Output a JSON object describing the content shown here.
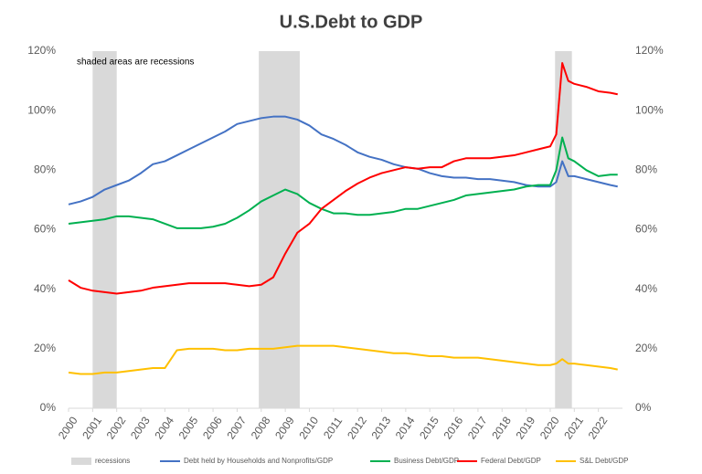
{
  "chart_data": {
    "type": "line",
    "title": "U.S.Debt to GDP",
    "annotation": "shaded areas are recessions",
    "x": [
      2000,
      2000.5,
      2001,
      2001.5,
      2002,
      2002.5,
      2003,
      2003.5,
      2004,
      2004.5,
      2005,
      2005.5,
      2006,
      2006.5,
      2007,
      2007.5,
      2008,
      2008.5,
      2009,
      2009.5,
      2010,
      2010.5,
      2011,
      2011.5,
      2012,
      2012.5,
      2013,
      2013.5,
      2014,
      2014.5,
      2015,
      2015.5,
      2016,
      2016.5,
      2017,
      2017.5,
      2018,
      2018.5,
      2019,
      2019.5,
      2020,
      2020.25,
      2020.5,
      2020.75,
      2021,
      2021.5,
      2022,
      2022.5,
      2022.8
    ],
    "recessions": {
      "name": "recessions",
      "color": "#d9d9d9",
      "spans": [
        [
          2001,
          2002
        ],
        [
          2007.9,
          2009.6
        ],
        [
          2020.2,
          2020.9
        ]
      ]
    },
    "series": [
      {
        "name": "Debt held by Households and Nonprofits/GDP",
        "color": "#4472c4",
        "values": [
          68.5,
          69.5,
          71,
          73.5,
          75,
          76.5,
          79,
          82,
          83,
          85,
          87,
          89,
          91,
          93,
          95.5,
          96.5,
          97.5,
          98,
          98,
          97,
          95,
          92,
          90.5,
          88.5,
          86,
          84.5,
          83.5,
          82,
          81,
          80.5,
          79,
          78,
          77.5,
          77.5,
          77,
          77,
          76.5,
          76,
          75,
          74.5,
          74.5,
          76,
          83,
          78,
          78,
          77,
          76,
          75,
          74.5
        ]
      },
      {
        "name": "Business Debt/GDP",
        "color": "#00b050",
        "values": [
          62,
          62.5,
          63,
          63.5,
          64.5,
          64.5,
          64,
          63.5,
          62,
          60.5,
          60.5,
          60.5,
          61,
          62,
          64,
          66.5,
          69.5,
          71.5,
          73.5,
          72,
          69,
          67,
          65.5,
          65.5,
          65,
          65,
          65.5,
          66,
          67,
          67,
          68,
          69,
          70,
          71.5,
          72,
          72.5,
          73,
          73.5,
          74.5,
          75,
          75,
          80,
          91,
          84,
          83,
          80,
          78,
          78.5,
          78.5
        ]
      },
      {
        "name": "Federal Debt/GDP",
        "color": "#ff0000",
        "values": [
          43,
          40.5,
          39.5,
          39,
          38.5,
          39,
          39.5,
          40.5,
          41,
          41.5,
          42,
          42,
          42,
          42,
          41.5,
          41,
          41.5,
          44,
          52,
          59,
          62,
          67,
          70,
          73,
          75.5,
          77.5,
          79,
          80,
          81,
          80.5,
          81,
          81,
          83,
          84,
          84,
          84,
          84.5,
          85,
          86,
          87,
          88,
          92,
          116,
          110,
          109,
          108,
          106.5,
          106,
          105.5
        ]
      },
      {
        "name": "S&L Debt/GDP",
        "color": "#ffc000",
        "values": [
          12,
          11.5,
          11.5,
          12,
          12,
          12.5,
          13,
          13.5,
          13.5,
          19.5,
          20,
          20,
          20,
          19.5,
          19.5,
          20,
          20,
          20,
          20.5,
          21,
          21,
          21,
          21,
          20.5,
          20,
          19.5,
          19,
          18.5,
          18.5,
          18,
          17.5,
          17.5,
          17,
          17,
          17,
          16.5,
          16,
          15.5,
          15,
          14.5,
          14.5,
          15,
          16.5,
          15,
          15,
          14.5,
          14,
          13.5,
          13
        ]
      }
    ],
    "xlim": [
      2000,
      2023
    ],
    "xticks": [
      2000,
      2001,
      2002,
      2003,
      2004,
      2005,
      2006,
      2007,
      2008,
      2009,
      2010,
      2011,
      2012,
      2013,
      2014,
      2015,
      2016,
      2017,
      2018,
      2019,
      2020,
      2021,
      2022
    ],
    "ylim": [
      0,
      120
    ],
    "yticks": [
      {
        "value": 0,
        "label": "0%"
      },
      {
        "value": 20,
        "label": "20%"
      },
      {
        "value": 40,
        "label": "40%"
      },
      {
        "value": 60,
        "label": "60%"
      },
      {
        "value": 80,
        "label": "80%"
      },
      {
        "value": 100,
        "label": "100%"
      },
      {
        "value": 120,
        "label": "120%"
      }
    ],
    "y2lim": [
      0,
      120
    ],
    "y2ticks": [
      {
        "value": 0,
        "label": "0%"
      },
      {
        "value": 20,
        "label": "20%"
      },
      {
        "value": 40,
        "label": "40%"
      },
      {
        "value": 60,
        "label": "60%"
      },
      {
        "value": 80,
        "label": "80%"
      },
      {
        "value": 100,
        "label": "100%"
      },
      {
        "value": 120,
        "label": "120%"
      }
    ],
    "grid": false,
    "legend": "bottom"
  }
}
